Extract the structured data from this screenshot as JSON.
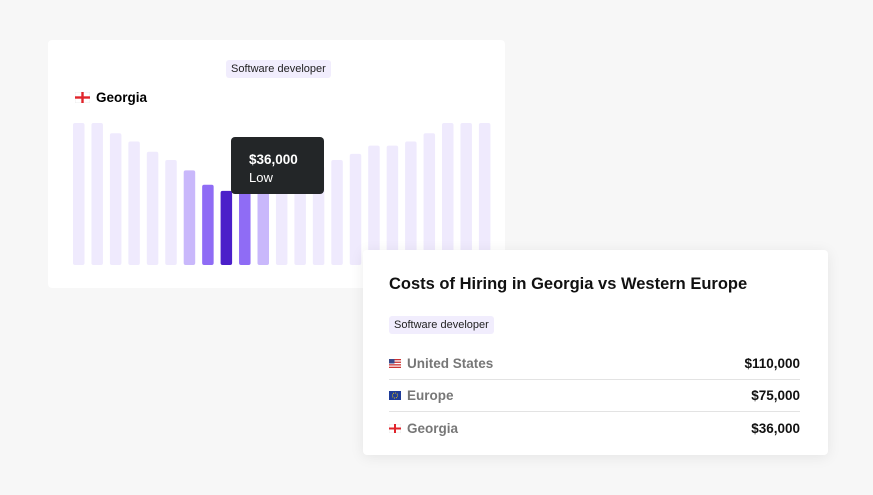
{
  "chart_data": {
    "type": "bar",
    "subtitle": "Software developer",
    "title": "Georgia",
    "categories": [
      null,
      null,
      null,
      null,
      null,
      null,
      null,
      null,
      null,
      null,
      null,
      null,
      null,
      null,
      null,
      null,
      null,
      null,
      null,
      null,
      null,
      null,
      null
    ],
    "values": [
      69000,
      69000,
      64000,
      60000,
      55000,
      51000,
      46000,
      39000,
      36000,
      39000,
      38000,
      41000,
      44000,
      48000,
      51000,
      54000,
      58000,
      58000,
      60000,
      64000,
      69000,
      69000,
      69000
    ],
    "value_labels": [
      null,
      null,
      null,
      null,
      null,
      null,
      null,
      null,
      "$36,000",
      null,
      null,
      null,
      null,
      null,
      null,
      null,
      null,
      null,
      null,
      null,
      null,
      null,
      null
    ],
    "annotation": "Low",
    "colors": [
      "#efeafd",
      "#efeafd",
      "#efeafd",
      "#efeafd",
      "#efeafd",
      "#efeafd",
      "#c9b8fb",
      "#8f6cf5",
      "#4b1fc9",
      "#8f6cf5",
      "#c9b8fb",
      "#efeafd",
      "#efeafd",
      "#efeafd",
      "#efeafd",
      "#efeafd",
      "#efeafd",
      "#efeafd",
      "#efeafd",
      "#efeafd",
      "#efeafd",
      "#efeafd",
      "#efeafd"
    ]
  },
  "comparison": {
    "title": "Costs of Hiring in Georgia vs Western Europe",
    "tag": "Software developer",
    "rows": [
      {
        "country": "United States",
        "amount": "$110,000"
      },
      {
        "country": "Europe",
        "amount": "$75,000"
      },
      {
        "country": "Georgia",
        "amount": "$36,000"
      }
    ]
  }
}
